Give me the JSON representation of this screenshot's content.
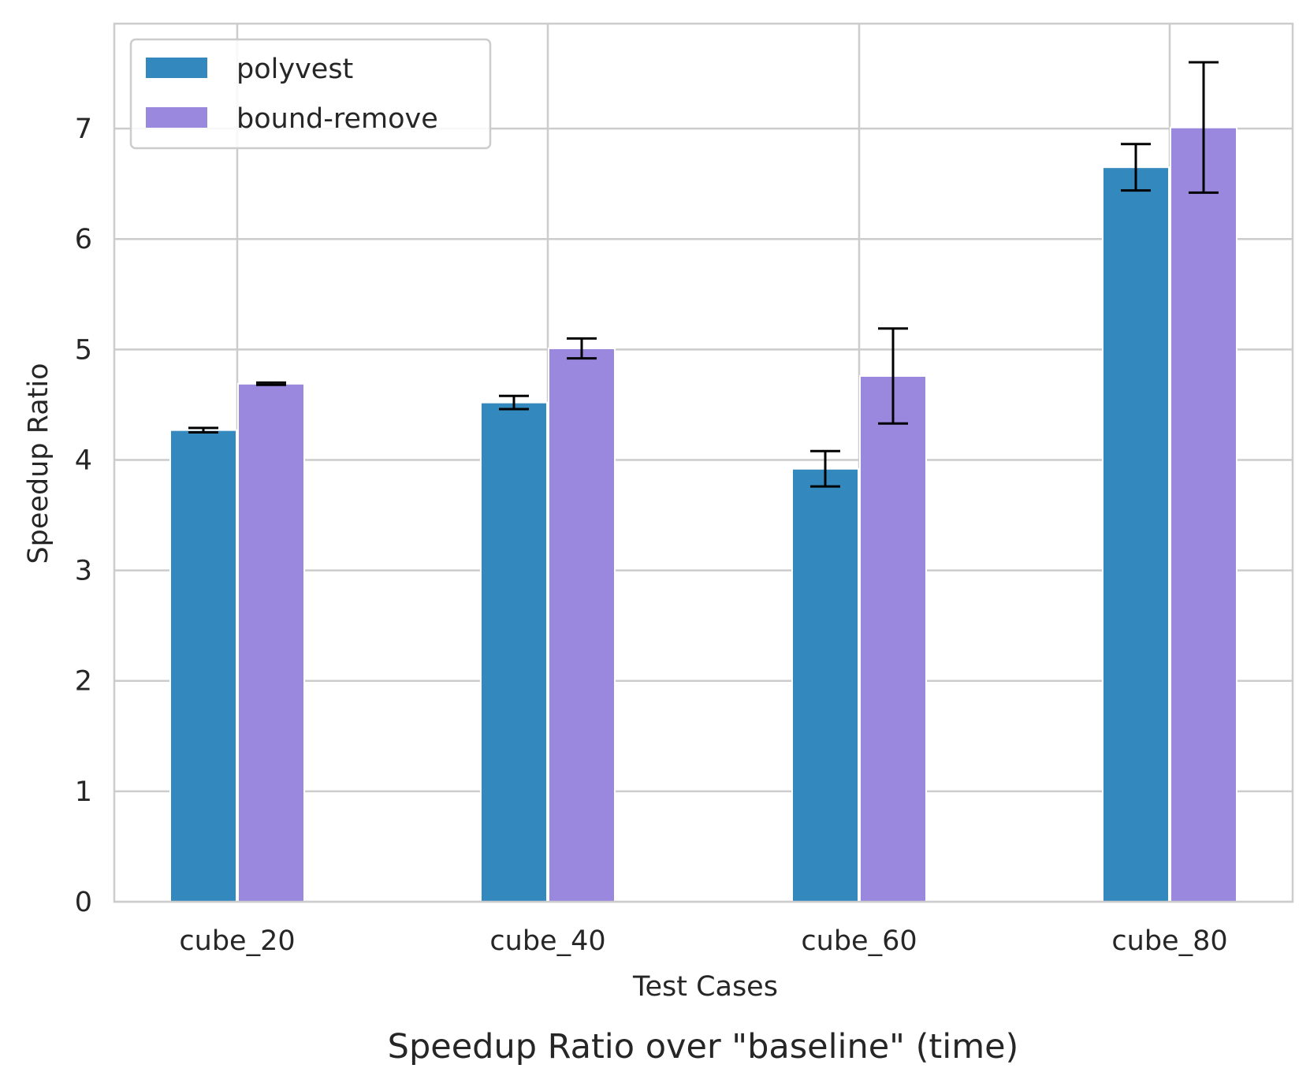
{
  "chart_data": {
    "type": "bar",
    "title": "Speedup Ratio over \"baseline\" (time)",
    "xlabel": "Test Cases",
    "ylabel": "Speedup Ratio",
    "categories": [
      "cube_20",
      "cube_40",
      "cube_60",
      "cube_80"
    ],
    "series": [
      {
        "name": "polyvest",
        "color": "#3388bd",
        "values": [
          4.27,
          4.52,
          3.92,
          6.65
        ],
        "error": [
          0.02,
          0.06,
          0.16,
          0.21
        ]
      },
      {
        "name": "bound-remove",
        "color": "#9a88de",
        "values": [
          4.69,
          5.01,
          4.76,
          7.01
        ],
        "error": [
          0.01,
          0.09,
          0.43,
          0.59
        ]
      }
    ],
    "ylim": [
      0,
      7.95
    ],
    "yticks": [
      "0",
      "1",
      "2",
      "3",
      "4",
      "5",
      "6",
      "7"
    ],
    "grid": true,
    "legend_position": "upper-left",
    "error_bar_color": "#000000",
    "grid_color": "#cccccc"
  }
}
